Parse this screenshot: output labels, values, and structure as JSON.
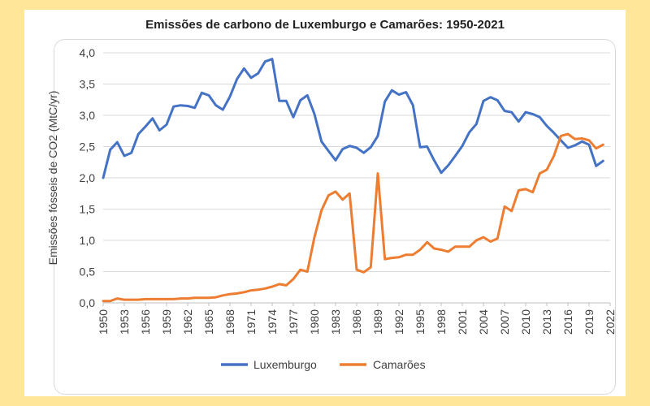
{
  "chart_data": {
    "type": "line",
    "title": "Emissões de carbono de Luxemburgo e Camarões: 1950-2021",
    "xlabel": "",
    "ylabel": "Emissões fósseis de CO2 (MtC/yr)",
    "ylim": [
      0,
      4
    ],
    "xlim": [
      1950,
      2022
    ],
    "y_ticks": [
      "0,0",
      "0,5",
      "1,0",
      "1,5",
      "2,0",
      "2,5",
      "3,0",
      "3,5",
      "4,0"
    ],
    "x_ticks": [
      "1950",
      "1953",
      "1956",
      "1959",
      "1962",
      "1965",
      "1968",
      "1971",
      "1974",
      "1977",
      "1980",
      "1983",
      "1986",
      "1989",
      "1992",
      "1995",
      "1998",
      "2001",
      "2004",
      "2007",
      "2010",
      "2013",
      "2016",
      "2019",
      "2022"
    ],
    "grid": true,
    "legend_position": "bottom",
    "x": [
      1950,
      1951,
      1952,
      1953,
      1954,
      1955,
      1956,
      1957,
      1958,
      1959,
      1960,
      1961,
      1962,
      1963,
      1964,
      1965,
      1966,
      1967,
      1968,
      1969,
      1970,
      1971,
      1972,
      1973,
      1974,
      1975,
      1976,
      1977,
      1978,
      1979,
      1980,
      1981,
      1982,
      1983,
      1984,
      1985,
      1986,
      1987,
      1988,
      1989,
      1990,
      1991,
      1992,
      1993,
      1994,
      1995,
      1996,
      1997,
      1998,
      1999,
      2000,
      2001,
      2002,
      2003,
      2004,
      2005,
      2006,
      2007,
      2008,
      2009,
      2010,
      2011,
      2012,
      2013,
      2014,
      2015,
      2016,
      2017,
      2018,
      2019,
      2020,
      2021
    ],
    "series": [
      {
        "name": "Luxemburgo",
        "color": "#4472c4",
        "values": [
          2.0,
          2.45,
          2.57,
          2.35,
          2.4,
          2.7,
          2.82,
          2.95,
          2.76,
          2.85,
          3.14,
          3.16,
          3.15,
          3.12,
          3.36,
          3.32,
          3.16,
          3.09,
          3.3,
          3.58,
          3.75,
          3.6,
          3.67,
          3.86,
          3.9,
          3.23,
          3.23,
          2.97,
          3.24,
          3.32,
          3.02,
          2.58,
          2.43,
          2.28,
          2.46,
          2.51,
          2.48,
          2.4,
          2.49,
          2.67,
          3.22,
          3.4,
          3.33,
          3.37,
          3.16,
          2.49,
          2.5,
          2.28,
          2.08,
          2.2,
          2.35,
          2.51,
          2.73,
          2.86,
          3.23,
          3.29,
          3.24,
          3.07,
          3.05,
          2.9,
          3.05,
          3.02,
          2.97,
          2.83,
          2.72,
          2.6,
          2.48,
          2.52,
          2.58,
          2.53,
          2.19,
          2.27
        ]
      },
      {
        "name": "Camarões",
        "color": "#ed7d31",
        "values": [
          0.03,
          0.03,
          0.07,
          0.05,
          0.05,
          0.05,
          0.06,
          0.06,
          0.06,
          0.06,
          0.06,
          0.07,
          0.07,
          0.08,
          0.08,
          0.08,
          0.09,
          0.12,
          0.14,
          0.15,
          0.17,
          0.2,
          0.21,
          0.23,
          0.26,
          0.3,
          0.28,
          0.38,
          0.53,
          0.5,
          1.05,
          1.48,
          1.72,
          1.78,
          1.65,
          1.75,
          0.53,
          0.49,
          0.57,
          2.07,
          0.7,
          0.72,
          0.73,
          0.77,
          0.77,
          0.85,
          0.97,
          0.87,
          0.85,
          0.82,
          0.9,
          0.9,
          0.9,
          1.0,
          1.05,
          0.98,
          1.03,
          1.54,
          1.47,
          1.8,
          1.82,
          1.77,
          2.07,
          2.13,
          2.35,
          2.67,
          2.7,
          2.62,
          2.63,
          2.6,
          2.47,
          2.53
        ]
      }
    ]
  }
}
